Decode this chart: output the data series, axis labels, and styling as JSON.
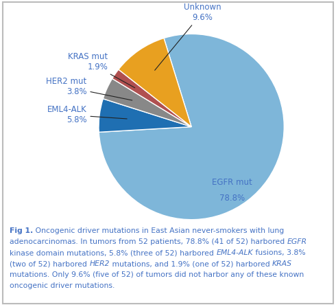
{
  "slices": [
    {
      "label": "EGFR mut",
      "pct": 78.8,
      "color": "#7EB6D9"
    },
    {
      "label": "EML4-ALK",
      "pct": 5.8,
      "color": "#1F6FB2"
    },
    {
      "label": "HER2 mut",
      "pct": 3.8,
      "color": "#888888"
    },
    {
      "label": "KRAS mut",
      "pct": 1.9,
      "color": "#B05050"
    },
    {
      "label": "Unknown",
      "pct": 9.6,
      "color": "#E8A020"
    }
  ],
  "text_color": "#4472C4",
  "bg_color": "#FFFFFF",
  "border_color": "#BBBBBB",
  "startangle": 107.28,
  "caption_fontsize": 7.8,
  "label_fontsize": 8.5
}
